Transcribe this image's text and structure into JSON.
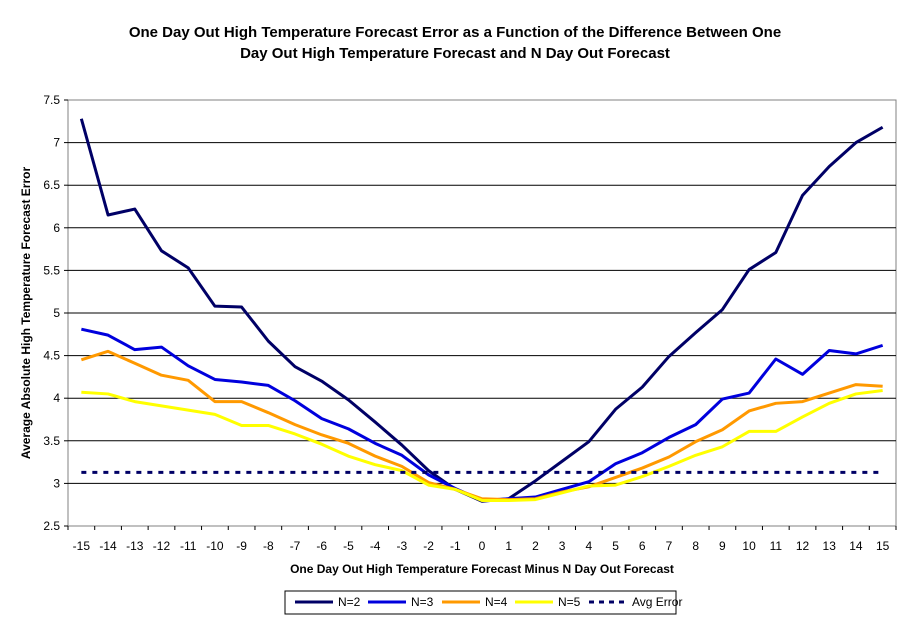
{
  "chart_data": {
    "type": "line",
    "title": "One Day Out High Temperature Forecast Error as a Function of the Difference Between One Day Out High Temperature Forecast and N Day Out Forecast",
    "title_lines": [
      "One Day Out High Temperature Forecast Error as a Function of the Difference Between One",
      "Day Out High Temperature Forecast and N Day Out Forecast"
    ],
    "xlabel": "One Day Out High Temperature Forecast Minus N Day Out Forecast",
    "ylabel": "Average Absolute High Temperature Forecast Error",
    "x": [
      -15,
      -14,
      -13,
      -12,
      -11,
      -10,
      -9,
      -8,
      -7,
      -6,
      -5,
      -4,
      -3,
      -2,
      -1,
      0,
      1,
      2,
      3,
      4,
      5,
      6,
      7,
      8,
      9,
      10,
      11,
      12,
      13,
      14,
      15
    ],
    "ylim": [
      2.5,
      7.5
    ],
    "yticks": [
      "2.5",
      "3",
      "3.5",
      "4",
      "4.5",
      "5",
      "5.5",
      "6",
      "6.5",
      "7",
      "7.5"
    ],
    "grid": "horizontal",
    "legend_position": "bottom",
    "series": [
      {
        "name": "N=2",
        "color": "#000066",
        "style": "solid",
        "values": [
          7.28,
          6.15,
          6.22,
          5.73,
          5.53,
          5.08,
          5.07,
          4.67,
          4.37,
          4.2,
          3.98,
          3.72,
          3.45,
          3.15,
          2.93,
          2.79,
          2.82,
          3.03,
          3.26,
          3.49,
          3.87,
          4.13,
          4.49,
          4.77,
          5.04,
          5.51,
          5.71,
          6.38,
          6.72,
          7.0,
          7.18
        ]
      },
      {
        "name": "N=3",
        "color": "#0000dd",
        "style": "solid",
        "values": [
          4.81,
          4.74,
          4.57,
          4.6,
          4.38,
          4.22,
          4.19,
          4.15,
          3.97,
          3.76,
          3.64,
          3.47,
          3.33,
          3.1,
          2.94,
          2.8,
          2.82,
          2.84,
          2.93,
          3.02,
          3.23,
          3.36,
          3.54,
          3.69,
          3.99,
          4.06,
          4.46,
          4.28,
          4.56,
          4.52,
          4.62
        ]
      },
      {
        "name": "N=4",
        "color": "#ff9900",
        "style": "solid",
        "values": [
          4.45,
          4.55,
          4.41,
          4.27,
          4.21,
          3.96,
          3.96,
          3.83,
          3.69,
          3.57,
          3.47,
          3.32,
          3.2,
          3.01,
          2.93,
          2.82,
          2.81,
          2.82,
          2.9,
          2.96,
          3.07,
          3.18,
          3.31,
          3.49,
          3.63,
          3.85,
          3.94,
          3.96,
          4.06,
          4.16,
          4.14
        ]
      },
      {
        "name": "N=5",
        "color": "#ffff00",
        "style": "solid",
        "values": [
          4.07,
          4.05,
          3.96,
          3.91,
          3.86,
          3.81,
          3.68,
          3.68,
          3.58,
          3.46,
          3.32,
          3.22,
          3.15,
          2.98,
          2.93,
          2.8,
          2.8,
          2.81,
          2.89,
          2.97,
          2.98,
          3.08,
          3.2,
          3.33,
          3.43,
          3.61,
          3.61,
          3.78,
          3.94,
          4.05,
          4.09
        ]
      },
      {
        "name": "Avg Error",
        "color": "#000066",
        "style": "dashed",
        "values": [
          3.13,
          3.13,
          3.13,
          3.13,
          3.13,
          3.13,
          3.13,
          3.13,
          3.13,
          3.13,
          3.13,
          3.13,
          3.13,
          3.13,
          3.13,
          3.13,
          3.13,
          3.13,
          3.13,
          3.13,
          3.13,
          3.13,
          3.13,
          3.13,
          3.13,
          3.13,
          3.13,
          3.13,
          3.13,
          3.13,
          3.13
        ]
      }
    ]
  }
}
